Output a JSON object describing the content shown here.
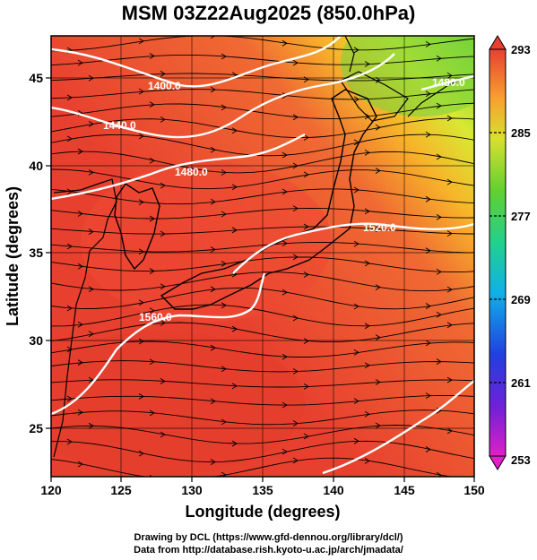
{
  "title": "MSM 03Z22Aug2025 (850.0hPa)",
  "xlabel": "Longitude (degrees)",
  "ylabel": "Latitude (degrees)",
  "x_ticks": [
    "120",
    "125",
    "130",
    "135",
    "140",
    "145",
    "150"
  ],
  "y_ticks": [
    "45",
    "40",
    "35",
    "30",
    "25"
  ],
  "colorbar_ticks": [
    "293",
    "285",
    "277",
    "269",
    "261",
    "253"
  ],
  "contour_labels": [
    "1400.0",
    "1440.0",
    "1480.0",
    "1520.0",
    "1560.0",
    "1480.0"
  ],
  "footer_line1": "Drawing by DCL (https://www.gfd-dennou.org/library/dcl/)",
  "footer_line2": "Data from http://database.rish.kyoto-u.ac.jp/arch/jmadata/",
  "map": {
    "lon_range": [
      120,
      150
    ],
    "lat_range": [
      22.5,
      47.5
    ],
    "temperature_range_K": [
      253,
      293
    ],
    "shaded_field": "temperature",
    "contour_field": "geopotential height",
    "streamlines": true,
    "grid": true
  },
  "colors": {
    "warm": "#e8422d",
    "cool": "#8cdc3a",
    "contour": "#ffffff",
    "streamline": "#000000"
  }
}
